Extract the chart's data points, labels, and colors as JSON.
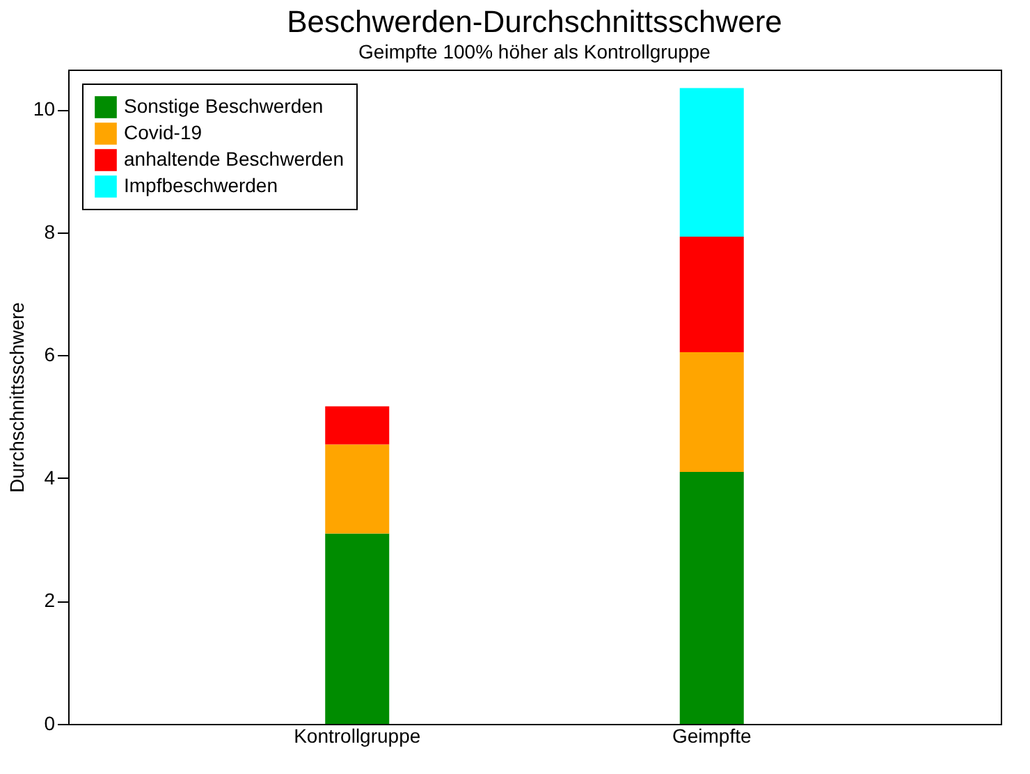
{
  "chart_data": {
    "type": "bar",
    "title": "Beschwerden-Durchschnittsschwere",
    "subtitle": "Geimpfte 100% höher als Kontrollgruppe",
    "ylabel": "Durchschnittsschwere",
    "categories": [
      "Kontrollgruppe",
      "Geimpfte"
    ],
    "stacked": true,
    "series": [
      {
        "name": "Sonstige Beschwerden",
        "color": "#008c00",
        "values": [
          3.1,
          4.1
        ]
      },
      {
        "name": "Covid-19",
        "color": "#ffa500",
        "values": [
          1.45,
          1.95
        ]
      },
      {
        "name": "anhaltende Beschwerden",
        "color": "#ff0000",
        "values": [
          0.62,
          1.88
        ]
      },
      {
        "name": "Impfbeschwerden",
        "color": "#00ffff",
        "values": [
          null,
          2.42
        ]
      }
    ],
    "ylim": [
      0,
      10.65
    ],
    "yticks": [
      0,
      2,
      4,
      6,
      8,
      10
    ],
    "grid": false,
    "legend": "top left"
  }
}
